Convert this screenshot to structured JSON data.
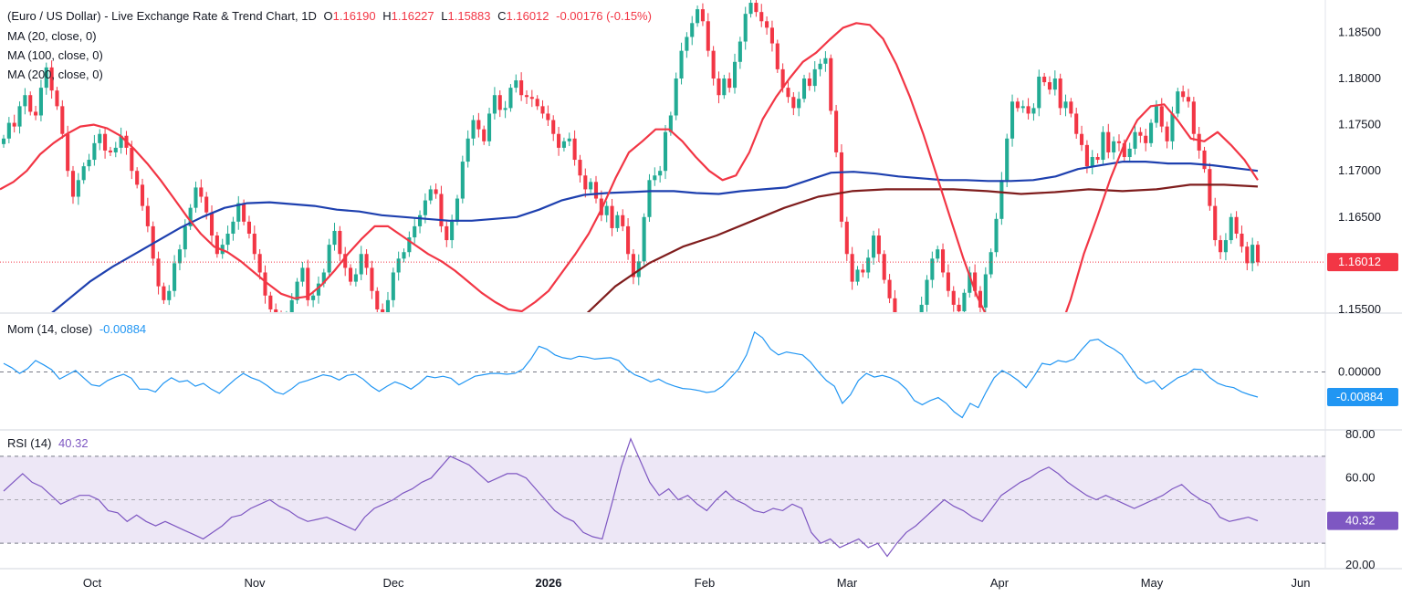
{
  "header": {
    "title": "(Euro / US Dollar) - Live Exchange Rate & Trend Chart, 1D",
    "ohlc": {
      "o_label": "O",
      "o_value": "1.16190",
      "h_label": "H",
      "h_value": "1.16227",
      "l_label": "L",
      "l_value": "1.15883",
      "c_label": "C",
      "c_value": "1.16012",
      "change": "-0.00176",
      "change_pct": "(-0.15%)"
    },
    "ma_labels": [
      "MA (20, close, 0)",
      "MA (100, close, 0)",
      "MA (200, close, 0)"
    ]
  },
  "indicators": {
    "mom_label": "Mom (14, close)",
    "mom_value": "-0.00884",
    "rsi_label": "RSI (14)",
    "rsi_value": "40.32"
  },
  "colors": {
    "up": "#22ab94",
    "down": "#f23645",
    "ma20": "#f23645",
    "ma100": "#1e40af",
    "ma200": "#7f1d1d",
    "mom": "#2196f3",
    "rsi": "#7e57c2",
    "rsi_band": "#ede7f6"
  },
  "chart_data": [
    {
      "type": "candlestick",
      "title": "(Euro / US Dollar) - Live Exchange Rate & Trend Chart, 1D",
      "x_tick_labels": [
        "Oct",
        "Nov",
        "Dec",
        "2026",
        "Feb",
        "Mar",
        "Apr",
        "May",
        "Jun"
      ],
      "y_tick_labels": [
        "1.18500",
        "1.18000",
        "1.17500",
        "1.17000",
        "1.16500",
        "1.16000",
        "1.15500"
      ],
      "ylim": [
        1.1547,
        1.1885
      ],
      "last_price": "1.16012",
      "last_price_value": 1.16012,
      "close": [
        1.1735,
        1.1752,
        1.1748,
        1.177,
        1.1782,
        1.1764,
        1.176,
        1.179,
        1.1812,
        1.1787,
        1.177,
        1.174,
        1.17,
        1.1672,
        1.169,
        1.1705,
        1.1712,
        1.173,
        1.174,
        1.1722,
        1.172,
        1.1725,
        1.1738,
        1.1725,
        1.17,
        1.1685,
        1.1662,
        1.164,
        1.1605,
        1.1575,
        1.156,
        1.157,
        1.16,
        1.1615,
        1.164,
        1.166,
        1.1682,
        1.1672,
        1.1655,
        1.163,
        1.161,
        1.162,
        1.1632,
        1.1645,
        1.1665,
        1.1645,
        1.1632,
        1.161,
        1.159,
        1.1565,
        1.155,
        1.154,
        1.153,
        1.1543,
        1.156,
        1.158,
        1.1595,
        1.156,
        1.1565,
        1.1578,
        1.159,
        1.162,
        1.1635,
        1.161,
        1.1595,
        1.158,
        1.1588,
        1.161,
        1.1595,
        1.157,
        1.155,
        1.1545,
        1.156,
        1.159,
        1.1605,
        1.1612,
        1.1628,
        1.164,
        1.1652,
        1.1668,
        1.168,
        1.1675,
        1.164,
        1.1625,
        1.1645,
        1.167,
        1.171,
        1.1735,
        1.1755,
        1.1745,
        1.1732,
        1.1762,
        1.1782,
        1.1766,
        1.1768,
        1.179,
        1.1798,
        1.1782,
        1.178,
        1.1778,
        1.177,
        1.1762,
        1.1755,
        1.174,
        1.1725,
        1.1732,
        1.1735,
        1.1712,
        1.1695,
        1.168,
        1.1688,
        1.167,
        1.1652,
        1.1662,
        1.1638,
        1.1652,
        1.164,
        1.161,
        1.1585,
        1.1602,
        1.165,
        1.169,
        1.1695,
        1.17,
        1.1742,
        1.176,
        1.18,
        1.183,
        1.1845,
        1.186,
        1.1875,
        1.1862,
        1.183,
        1.18,
        1.1782,
        1.18,
        1.179,
        1.1818,
        1.184,
        1.187,
        1.1882,
        1.1872,
        1.1862,
        1.1855,
        1.1838,
        1.181,
        1.179,
        1.178,
        1.1768,
        1.1778,
        1.18,
        1.1792,
        1.181,
        1.1816,
        1.1822,
        1.1765,
        1.172,
        1.1645,
        1.161,
        1.158,
        1.1593,
        1.159,
        1.1606,
        1.163,
        1.161,
        1.1582,
        1.1562,
        1.154,
        1.1528,
        1.1515,
        1.1506,
        1.152,
        1.1555,
        1.1582,
        1.1605,
        1.1615,
        1.159,
        1.157,
        1.1555,
        1.1548,
        1.1568,
        1.159,
        1.157,
        1.1552,
        1.1588,
        1.1612,
        1.1648,
        1.169,
        1.1735,
        1.1775,
        1.1768,
        1.177,
        1.1762,
        1.1768,
        1.1802,
        1.1796,
        1.1788,
        1.18,
        1.1768,
        1.1775,
        1.1762,
        1.174,
        1.1728,
        1.1705,
        1.1715,
        1.1712,
        1.1742,
        1.172,
        1.1732,
        1.173,
        1.1715,
        1.1724,
        1.1742,
        1.1738,
        1.173,
        1.1752,
        1.177,
        1.1748,
        1.1732,
        1.1762,
        1.1786,
        1.178,
        1.1775,
        1.174,
        1.1722,
        1.1702,
        1.1662,
        1.1625,
        1.1612,
        1.1625,
        1.165,
        1.1632,
        1.1618,
        1.16,
        1.162,
        1.1601
      ],
      "ma20": [
        1.168,
        1.1688,
        1.17,
        1.1718,
        1.173,
        1.174,
        1.1748,
        1.175,
        1.1746,
        1.1738,
        1.1724,
        1.1708,
        1.169,
        1.167,
        1.165,
        1.1632,
        1.1618,
        1.1612,
        1.1602,
        1.159,
        1.1578,
        1.1567,
        1.1562,
        1.1564,
        1.1576,
        1.1592,
        1.161,
        1.1626,
        1.164,
        1.164,
        1.163,
        1.162,
        1.161,
        1.1602,
        1.1592,
        1.158,
        1.1568,
        1.1558,
        1.155,
        1.1548,
        1.1558,
        1.157,
        1.159,
        1.161,
        1.1632,
        1.166,
        1.1692,
        1.172,
        1.1732,
        1.1745,
        1.1745,
        1.1732,
        1.1715,
        1.17,
        1.169,
        1.1695,
        1.172,
        1.1756,
        1.178,
        1.18,
        1.1818,
        1.1828,
        1.1842,
        1.1855,
        1.186,
        1.1858,
        1.1843,
        1.1815,
        1.178,
        1.174,
        1.1695,
        1.165,
        1.1605,
        1.1565,
        1.1535,
        1.1515,
        1.15,
        1.149,
        1.1492,
        1.152,
        1.156,
        1.161,
        1.165,
        1.1692,
        1.1728,
        1.1755,
        1.177,
        1.1772,
        1.1755,
        1.1735,
        1.1732,
        1.1742,
        1.1728,
        1.1712,
        1.169
      ],
      "ma100": [
        1.15,
        1.152,
        1.154,
        1.156,
        1.158,
        1.1596,
        1.161,
        1.1624,
        1.1638,
        1.165,
        1.166,
        1.1665,
        1.1666,
        1.1664,
        1.1662,
        1.1658,
        1.1656,
        1.1652,
        1.165,
        1.1648,
        1.1646,
        1.1646,
        1.1648,
        1.165,
        1.1658,
        1.1668,
        1.1674,
        1.1676,
        1.1677,
        1.1678,
        1.1678,
        1.1676,
        1.1675,
        1.1678,
        1.168,
        1.1682,
        1.169,
        1.1698,
        1.1699,
        1.1697,
        1.1694,
        1.1692,
        1.169,
        1.169,
        1.1689,
        1.1689,
        1.169,
        1.1694,
        1.1702,
        1.1706,
        1.171,
        1.171,
        1.1708,
        1.1708,
        1.1706,
        1.1703,
        1.17
      ],
      "ma200": [
        1.15,
        1.154,
        1.1575,
        1.16,
        1.1618,
        1.163,
        1.1645,
        1.166,
        1.1672,
        1.1678,
        1.168,
        1.168,
        1.168,
        1.1678,
        1.1675,
        1.1677,
        1.168,
        1.1678,
        1.168,
        1.1685,
        1.1685,
        1.1683
      ],
      "annotations": "Candles, moving averages and dashed last-price line",
      "grid": false
    },
    {
      "type": "line",
      "title": "Mom (14, close)",
      "y_tick_labels": [
        "0.00000"
      ],
      "ylim": [
        -0.02,
        0.02
      ],
      "last_value": "-0.00884",
      "values": [
        0.003,
        0.0015,
        -0.0005,
        0.0012,
        0.004,
        0.0025,
        0.0008,
        -0.0025,
        -0.001,
        0.0005,
        -0.002,
        -0.0045,
        -0.005,
        -0.003,
        -0.0018,
        -0.0008,
        -0.0022,
        -0.006,
        -0.006,
        -0.007,
        -0.004,
        -0.002,
        -0.0035,
        -0.003,
        -0.005,
        -0.004,
        -0.006,
        -0.0075,
        -0.005,
        -0.0025,
        -0.0005,
        -0.002,
        -0.003,
        -0.0048,
        -0.007,
        -0.0078,
        -0.006,
        -0.0038,
        -0.003,
        -0.002,
        -0.001,
        -0.0015,
        -0.0028,
        -0.0012,
        -0.0008,
        -0.0025,
        -0.005,
        -0.0068,
        -0.005,
        -0.0035,
        -0.0045,
        -0.006,
        -0.004,
        -0.0015,
        -0.002,
        -0.0015,
        -0.0022,
        -0.0045,
        -0.003,
        -0.0015,
        -0.001,
        -0.0005,
        -0.0005,
        -0.0008,
        -0.0005,
        0.001,
        0.0045,
        0.009,
        0.008,
        0.006,
        0.005,
        0.0045,
        0.0055,
        0.0052,
        0.0045,
        0.0048,
        0.005,
        0.004,
        0.001,
        -0.001,
        -0.002,
        -0.0035,
        -0.0025,
        -0.004,
        -0.005,
        -0.0058,
        -0.006,
        -0.0065,
        -0.0072,
        -0.0068,
        -0.005,
        -0.002,
        0.001,
        0.006,
        0.014,
        0.012,
        0.008,
        0.006,
        0.007,
        0.0065,
        0.006,
        0.0035,
        0.0,
        -0.003,
        -0.005,
        -0.011,
        -0.008,
        -0.003,
        -0.0005,
        -0.0018,
        -0.0012,
        -0.002,
        -0.0035,
        -0.006,
        -0.01,
        -0.0115,
        -0.01,
        -0.009,
        -0.011,
        -0.014,
        -0.016,
        -0.011,
        -0.0125,
        -0.007,
        -0.002,
        0.0005,
        -0.001,
        -0.003,
        -0.0055,
        -0.0015,
        0.003,
        0.0025,
        0.004,
        0.0035,
        0.0045,
        0.008,
        0.011,
        0.0115,
        0.0095,
        0.008,
        0.006,
        0.002,
        -0.002,
        -0.004,
        -0.003,
        -0.006,
        -0.004,
        -0.002,
        -0.001,
        0.001,
        0.0008,
        -0.002,
        -0.004,
        -0.005,
        -0.0055,
        -0.007,
        -0.008,
        -0.0088
      ],
      "grid": false
    },
    {
      "type": "line",
      "title": "RSI (14)",
      "y_tick_labels": [
        "80.00",
        "60.00",
        "40.00",
        "20.00"
      ],
      "ylim": [
        20,
        80
      ],
      "last_value": "40.32",
      "values": [
        54,
        58,
        62,
        58,
        56,
        52,
        48,
        50,
        52,
        52,
        50,
        45,
        44,
        40,
        43,
        40,
        38,
        40,
        38,
        36,
        34,
        32,
        35,
        38,
        42,
        43,
        46,
        48,
        50,
        47,
        45,
        42,
        40,
        41,
        42,
        40,
        38,
        36,
        42,
        46,
        48,
        50,
        53,
        55,
        58,
        60,
        65,
        70,
        68,
        66,
        62,
        58,
        60,
        62,
        62,
        60,
        55,
        50,
        45,
        42,
        40,
        35,
        33,
        32,
        48,
        65,
        78,
        68,
        58,
        52,
        55,
        50,
        52,
        48,
        45,
        50,
        54,
        50,
        48,
        45,
        44,
        46,
        45,
        48,
        46,
        35,
        30,
        32,
        28,
        30,
        32,
        28,
        30,
        24,
        30,
        35,
        38,
        42,
        46,
        50,
        47,
        45,
        42,
        40,
        46,
        52,
        55,
        58,
        60,
        63,
        65,
        62,
        58,
        55,
        52,
        50,
        52,
        50,
        48,
        46,
        48,
        50,
        52,
        55,
        57,
        53,
        50,
        48,
        42,
        40,
        41,
        42,
        40.32
      ],
      "bands": [
        30,
        70
      ],
      "grid": false
    }
  ]
}
